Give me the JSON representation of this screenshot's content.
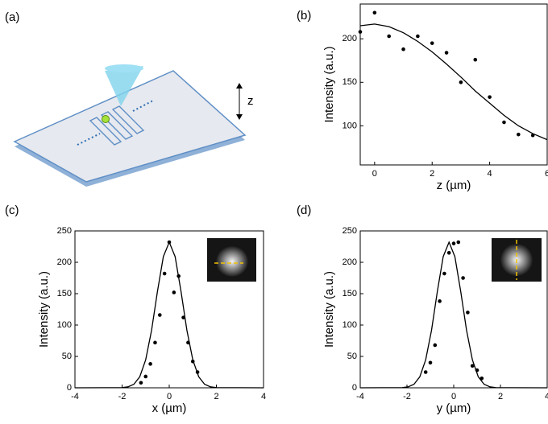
{
  "panel_a": {
    "label": "(a)",
    "z_label": "z"
  },
  "chart_data": [
    {
      "type": "scatter",
      "panel_label": "(b)",
      "xlabel": "z (µm)",
      "ylabel": "Intensity (a.u.)",
      "xlim": [
        -0.5,
        6
      ],
      "ylim": [
        55,
        240
      ],
      "xticks": [
        0,
        2,
        4,
        6
      ],
      "yticks": [
        100,
        150,
        200
      ],
      "series": [
        {
          "mode": "markers",
          "color": "#000000",
          "x": [
            -0.5,
            0,
            0.5,
            1,
            1.5,
            2,
            2.5,
            3,
            3.5,
            4,
            4.5,
            5,
            5.5
          ],
          "values": [
            208,
            230,
            203,
            188,
            203,
            195,
            184,
            150,
            176,
            133,
            104,
            90,
            89
          ]
        },
        {
          "mode": "line",
          "color": "#000000",
          "x": [
            -0.5,
            0,
            0.5,
            1,
            1.5,
            2,
            2.5,
            3,
            3.5,
            4,
            4.5,
            5,
            5.5,
            6
          ],
          "values": [
            215,
            217,
            214,
            207,
            197,
            185,
            171,
            156,
            140,
            126,
            112,
            100,
            91,
            84
          ]
        }
      ]
    },
    {
      "type": "scatter",
      "panel_label": "(c)",
      "xlabel": "x (µm)",
      "ylabel": "Intensity (a.u.)",
      "xlim": [
        -4,
        4
      ],
      "ylim": [
        0,
        250
      ],
      "xticks": [
        -4,
        -2,
        0,
        2,
        4
      ],
      "yticks": [
        0,
        50,
        100,
        150,
        200,
        250
      ],
      "series": [
        {
          "mode": "markers",
          "color": "#000000",
          "x": [
            -1.2,
            -1.0,
            -0.8,
            -0.6,
            -0.4,
            -0.2,
            0,
            0.2,
            0.4,
            0.6,
            0.8,
            1.0,
            1.2
          ],
          "values": [
            8,
            18,
            38,
            72,
            116,
            182,
            232,
            152,
            178,
            112,
            72,
            42,
            25
          ]
        },
        {
          "mode": "line",
          "color": "#000000",
          "x": [
            -4,
            -2,
            -1.75,
            -1.5,
            -1.25,
            -1,
            -0.75,
            -0.5,
            -0.25,
            0,
            0.25,
            0.5,
            0.75,
            1,
            1.25,
            1.5,
            1.75,
            2,
            4
          ],
          "values": [
            0,
            0.3,
            1.5,
            5.6,
            17.6,
            44.5,
            91.5,
            153.5,
            209,
            232,
            209,
            153.5,
            91.5,
            44.5,
            17.6,
            5.6,
            1.5,
            0.3,
            0
          ]
        }
      ]
    },
    {
      "type": "scatter",
      "panel_label": "(d)",
      "xlabel": "y (µm)",
      "ylabel": "Intensity (a.u.)",
      "xlim": [
        -4,
        4
      ],
      "ylim": [
        0,
        250
      ],
      "xticks": [
        -4,
        -2,
        0,
        2,
        4
      ],
      "yticks": [
        0,
        50,
        100,
        150,
        200,
        250
      ],
      "series": [
        {
          "mode": "markers",
          "color": "#000000",
          "x": [
            -1.2,
            -1,
            -0.8,
            -0.6,
            -0.4,
            -0.2,
            0,
            0.2,
            0.4,
            0.6,
            0.8,
            1.0,
            1.2
          ],
          "values": [
            25,
            40,
            68,
            138,
            182,
            215,
            230,
            232,
            175,
            120,
            35,
            28,
            15
          ]
        },
        {
          "mode": "line",
          "color": "#000000",
          "x": [
            -4,
            -2.2,
            -1.95,
            -1.7,
            -1.45,
            -1.2,
            -0.95,
            -0.7,
            -0.45,
            -0.2,
            0.05,
            0.3,
            0.55,
            0.8,
            1.05,
            1.3,
            1.55,
            1.8,
            4
          ],
          "values": [
            0,
            0.3,
            1.5,
            5.6,
            17.6,
            44.5,
            91.5,
            153.5,
            209,
            232,
            209,
            153.5,
            91.5,
            44.5,
            17.6,
            5.6,
            1.5,
            0.3,
            0
          ]
        }
      ]
    }
  ]
}
